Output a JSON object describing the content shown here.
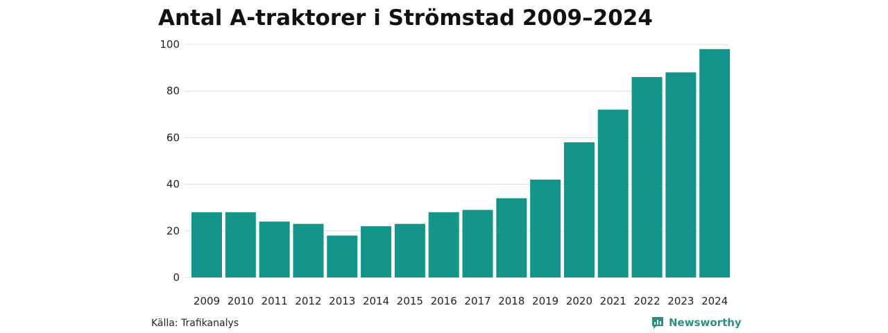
{
  "colors": {
    "bar": "#139689",
    "grid": "#dddddd",
    "text": "#222222",
    "brand": "#2a8f83"
  },
  "chart_data": {
    "type": "bar",
    "title": "Antal A-traktorer i Strömstad 2009–2024",
    "xlabel": "",
    "ylabel": "",
    "categories": [
      "2009",
      "2010",
      "2011",
      "2012",
      "2013",
      "2014",
      "2015",
      "2016",
      "2017",
      "2018",
      "2019",
      "2020",
      "2021",
      "2022",
      "2023",
      "2024"
    ],
    "values": [
      28,
      28,
      24,
      23,
      18,
      22,
      23,
      28,
      29,
      34,
      42,
      58,
      72,
      86,
      88,
      98
    ],
    "ylim": [
      0,
      100
    ],
    "yticks": [
      0,
      20,
      40,
      60,
      80,
      100
    ],
    "grid": true,
    "legend": "none"
  },
  "footer": {
    "source": "Källa: Trafikanalys",
    "brand": "Newsworthy",
    "brand_icon": "newsworthy-logo-icon"
  }
}
